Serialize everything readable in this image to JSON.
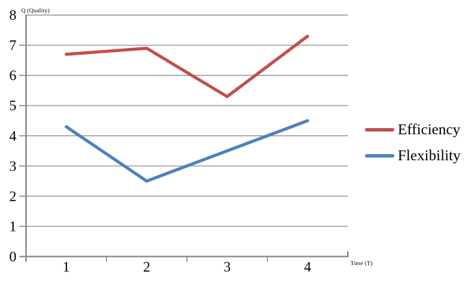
{
  "chart_data": {
    "type": "line",
    "title": "",
    "categories": [
      "1",
      "2",
      "3",
      "4"
    ],
    "series": [
      {
        "name": "Efficiency",
        "values": [
          6.7,
          6.9,
          5.3,
          7.3
        ],
        "color": "#C0504D"
      },
      {
        "name": "Flexibility",
        "values": [
          4.3,
          2.5,
          3.5,
          4.5
        ],
        "color": "#4F81BD"
      }
    ],
    "xlabel": "Time (T)",
    "ylabel": "Q (Quality)",
    "ylim": [
      0,
      8
    ],
    "yticks": [
      0,
      1,
      2,
      3,
      4,
      5,
      6,
      7,
      8
    ],
    "grid": true,
    "legend_position": "right",
    "gridline_color": "#9C9C9C",
    "axis_color": "#808080",
    "text_color": "#000000"
  }
}
